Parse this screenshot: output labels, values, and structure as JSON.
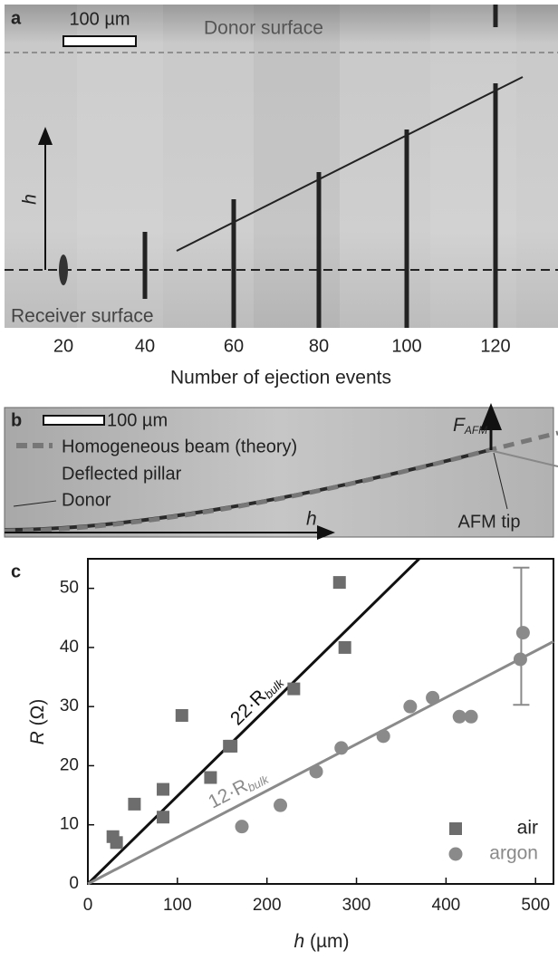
{
  "panel_a": {
    "label": "a",
    "scale_bar": "100 µm",
    "donor": "Donor surface",
    "receiver": "Receiver surface",
    "h": "h",
    "ticks": [
      20,
      40,
      60,
      80,
      100,
      120
    ],
    "x_label": "Number of ejection events"
  },
  "panel_b": {
    "label": "b",
    "scale_bar": "100 µm",
    "legend": "Homogeneous beam (theory)",
    "pillar": "Deflected pillar",
    "donor": "Donor",
    "force": "F",
    "force_sub": "AFM",
    "tip": "AFM tip",
    "h": "h"
  },
  "chart_data": {
    "type": "scatter",
    "panel_label": "c",
    "x_label": "h",
    "x_unit": "(µm)",
    "y_label": "R",
    "y_unit": "(Ω)",
    "xlim": [
      0,
      520
    ],
    "xticks": [
      0,
      100,
      200,
      300,
      400,
      500
    ],
    "ylim": [
      0,
      55
    ],
    "yticks": [
      0,
      10,
      20,
      30,
      40,
      50
    ],
    "series": [
      {
        "name": "air",
        "marker": "square",
        "color": "#6d6d6d",
        "x": [
          28,
          32,
          52,
          84,
          84,
          105,
          137,
          158,
          160,
          230,
          281,
          287
        ],
        "values": [
          8,
          7,
          13.5,
          16,
          11.3,
          28.5,
          18,
          23.3,
          23.3,
          33,
          51,
          40
        ]
      },
      {
        "name": "argon",
        "marker": "circle",
        "color": "#8a8a8a",
        "x": [
          172,
          215,
          255,
          283,
          330,
          360,
          385,
          415,
          428,
          483,
          486
        ],
        "values": [
          9.7,
          13.3,
          19,
          23,
          25,
          30,
          31.5,
          28.3,
          28.3,
          38,
          42.5
        ]
      }
    ],
    "error_bar": {
      "x": 484,
      "low": 30.3,
      "high": 53.5
    },
    "fit_lines": [
      {
        "label": "22·R",
        "sub": "bulk",
        "color": "#111111",
        "x": [
          0,
          370
        ],
        "values": [
          0,
          55
        ]
      },
      {
        "label": "12·R",
        "sub": "bulk",
        "color": "#8a8a8a",
        "x": [
          0,
          520
        ],
        "values": [
          0,
          41
        ]
      }
    ]
  }
}
